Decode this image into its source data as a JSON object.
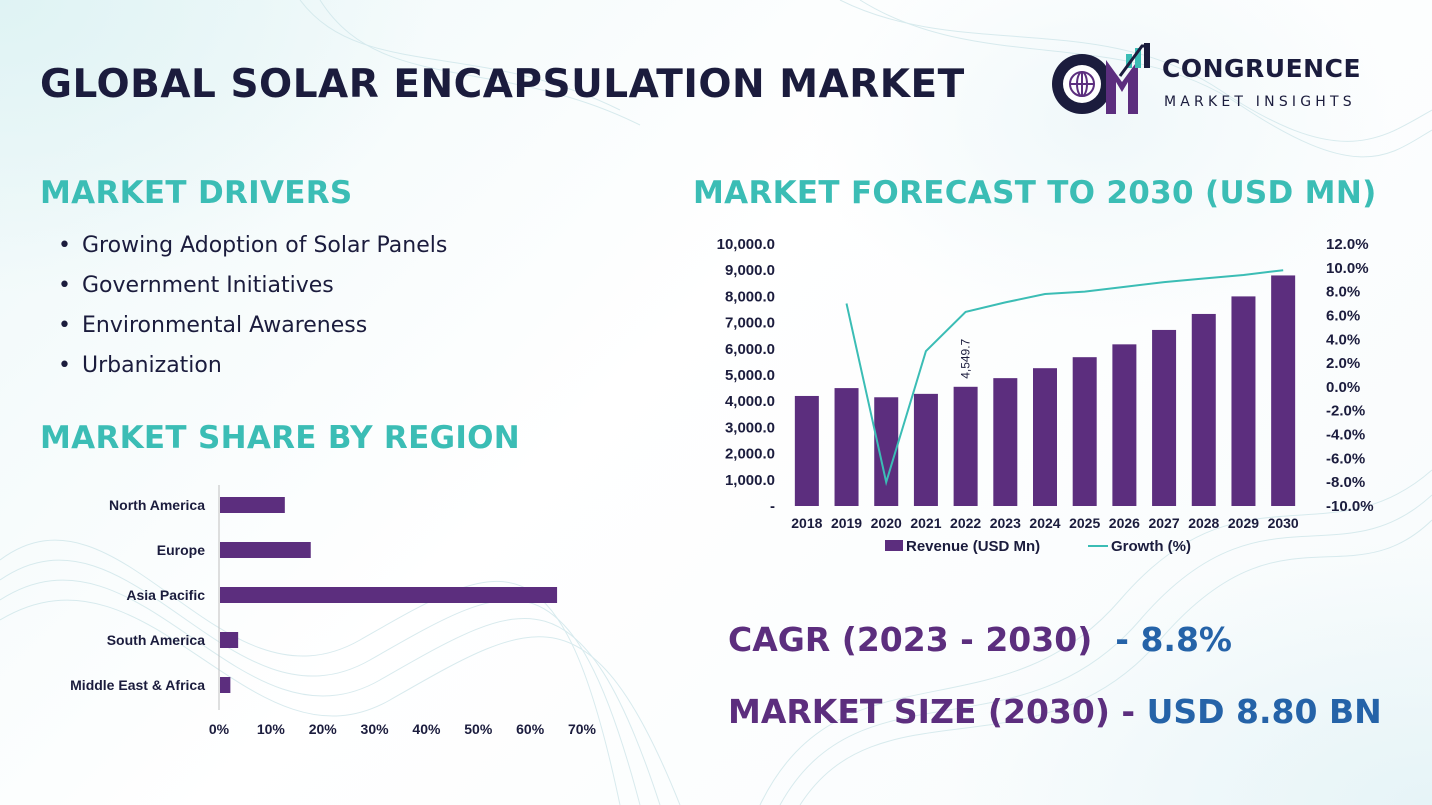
{
  "header": {
    "title": "GLOBAL SOLAR ENCAPSULATION MARKET",
    "logo_line1": "CONGRUENCE",
    "logo_line2": "MARKET INSIGHTS",
    "logo_mark": "CM"
  },
  "drivers": {
    "title": "MARKET DRIVERS",
    "bullet": "•",
    "items": [
      "Growing Adoption of Solar Panels",
      "Government Initiatives",
      "Environmental Awareness",
      "Urbanization"
    ]
  },
  "region": {
    "title": "MARKET SHARE BY REGION"
  },
  "forecast": {
    "title": "MARKET FORECAST TO 2030 (USD MN)"
  },
  "stats": {
    "cagr_label": "CAGR (2023 - 2030)",
    "cagr_sep": "  - ",
    "cagr_value": "8.8%",
    "size_label": "MARKET SIZE (2030) - ",
    "size_value": "USD 8.80 BN"
  },
  "colors": {
    "bar": "#5c2e7e",
    "line": "#3bbdb5",
    "title_dark": "#1b1c3d",
    "accent_teal": "#3bbdb5",
    "accent_blue": "#2563a8"
  },
  "chart_data": [
    {
      "type": "bar",
      "orientation": "horizontal",
      "categories": [
        "North America",
        "Europe",
        "Asia Pacific",
        "South America",
        "Middle East & Africa"
      ],
      "values": [
        12.5,
        17.5,
        65,
        3.5,
        2
      ],
      "xticks": [
        "0%",
        "10%",
        "20%",
        "30%",
        "40%",
        "50%",
        "60%",
        "70%"
      ],
      "xlim": [
        0,
        70
      ],
      "grid": false
    },
    {
      "type": "bar",
      "categories": [
        "2018",
        "2019",
        "2020",
        "2021",
        "2022",
        "2023",
        "2024",
        "2025",
        "2026",
        "2027",
        "2028",
        "2029",
        "2030"
      ],
      "series": [
        {
          "name": "Revenue (USD Mn)",
          "type": "bar",
          "axis": "left",
          "values": [
            4200,
            4500,
            4150,
            4280,
            4549.7,
            4880,
            5260,
            5680,
            6170,
            6720,
            7330,
            8000,
            8800
          ]
        },
        {
          "name": "Growth (%)",
          "type": "line",
          "axis": "right",
          "values": [
            null,
            7.0,
            -8.0,
            3.0,
            6.3,
            7.1,
            7.8,
            8.0,
            8.4,
            8.8,
            9.1,
            9.4,
            9.8
          ]
        }
      ],
      "annotations": [
        {
          "category": "2022",
          "text": "4,549.7"
        }
      ],
      "yticks_left": [
        "10,000.0",
        "9,000.0",
        "8,000.0",
        "7,000.0",
        "6,000.0",
        "5,000.0",
        "4,000.0",
        "3,000.0",
        "2,000.0",
        "1,000.0",
        "-"
      ],
      "yticks_right": [
        "12.0%",
        "10.0%",
        "8.0%",
        "6.0%",
        "4.0%",
        "2.0%",
        "0.0%",
        "-2.0%",
        "-4.0%",
        "-6.0%",
        "-8.0%",
        "-10.0%"
      ],
      "ylim_left": [
        0,
        10000
      ],
      "ylim_right": [
        -10,
        12
      ],
      "legend": "bottom",
      "grid": false
    }
  ]
}
